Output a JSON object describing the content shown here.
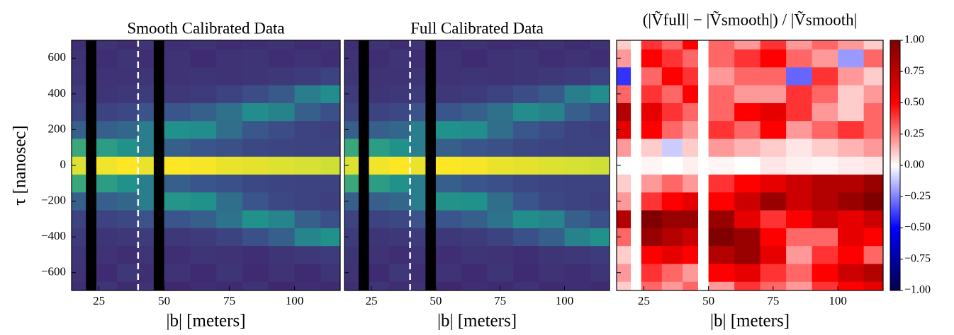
{
  "chart_data": [
    {
      "type": "heatmap",
      "title": "Smooth Calibrated Data",
      "xlabel": "|b| [meters]",
      "ylabel": "τ [nanosec]",
      "xlim": [
        14.5,
        117.5
      ],
      "ylim": [
        -700,
        700
      ],
      "xticks": [
        25,
        50,
        75,
        100
      ],
      "yticks": [
        {
          "value": -600,
          "label": "−600"
        },
        {
          "value": -400,
          "label": "−400"
        },
        {
          "value": -200,
          "label": "−200"
        },
        0,
        200,
        400,
        600
      ],
      "xbins": [
        14.5,
        20,
        24,
        32,
        40,
        46,
        50,
        60,
        70,
        80,
        90,
        100,
        110,
        117.5
      ],
      "ybins": [
        -700,
        -650,
        -550,
        -450,
        -350,
        -250,
        -150,
        -50,
        50,
        150,
        250,
        350,
        450,
        550,
        650,
        700
      ],
      "colormap": "viridis",
      "clim": [
        0,
        1
      ],
      "null_color": "#000000",
      "vline": 40,
      "z": [
        [
          0.14,
          null,
          0.16,
          0.13,
          0.15,
          null,
          0.12,
          0.14,
          0.13,
          0.15,
          0.12,
          0.14,
          0.13
        ],
        [
          0.15,
          null,
          0.13,
          0.17,
          0.14,
          null,
          0.15,
          0.13,
          0.16,
          0.13,
          0.15,
          0.13,
          0.16
        ],
        [
          0.16,
          null,
          0.15,
          0.14,
          0.16,
          null,
          0.14,
          0.16,
          0.15,
          0.14,
          0.16,
          0.17,
          0.18
        ],
        [
          0.18,
          null,
          0.16,
          0.17,
          0.18,
          null,
          0.17,
          0.18,
          0.2,
          0.24,
          0.3,
          0.45,
          0.5
        ],
        [
          0.2,
          null,
          0.2,
          0.22,
          0.25,
          null,
          0.26,
          0.3,
          0.38,
          0.5,
          0.45,
          0.3,
          0.24
        ],
        [
          0.3,
          null,
          0.3,
          0.33,
          0.42,
          null,
          0.52,
          0.5,
          0.36,
          0.26,
          0.22,
          0.2,
          0.19
        ],
        [
          0.6,
          null,
          0.55,
          0.5,
          0.42,
          null,
          0.3,
          0.26,
          0.24,
          0.22,
          0.21,
          0.2,
          0.2
        ],
        [
          0.95,
          null,
          0.98,
          1.0,
          0.97,
          null,
          1.0,
          0.99,
          0.97,
          0.96,
          0.95,
          0.94,
          0.93
        ],
        [
          0.6,
          null,
          0.55,
          0.5,
          0.42,
          null,
          0.3,
          0.26,
          0.24,
          0.22,
          0.21,
          0.2,
          0.2
        ],
        [
          0.3,
          null,
          0.3,
          0.33,
          0.42,
          null,
          0.5,
          0.48,
          0.36,
          0.27,
          0.23,
          0.2,
          0.19
        ],
        [
          0.2,
          null,
          0.2,
          0.22,
          0.25,
          null,
          0.26,
          0.3,
          0.37,
          0.48,
          0.44,
          0.3,
          0.24
        ],
        [
          0.18,
          null,
          0.16,
          0.17,
          0.18,
          null,
          0.17,
          0.18,
          0.2,
          0.23,
          0.28,
          0.42,
          0.48
        ],
        [
          0.16,
          null,
          0.15,
          0.15,
          0.16,
          null,
          0.15,
          0.16,
          0.15,
          0.16,
          0.17,
          0.18,
          0.2
        ],
        [
          0.15,
          null,
          0.14,
          0.16,
          0.14,
          null,
          0.15,
          0.13,
          0.15,
          0.16,
          0.14,
          0.15,
          0.14
        ],
        [
          0.14,
          null,
          0.15,
          0.13,
          0.16,
          null,
          0.14,
          0.15,
          0.13,
          0.14,
          0.15,
          0.13,
          0.15
        ]
      ]
    },
    {
      "type": "heatmap",
      "title": "Full Calibrated Data",
      "xlabel": "|b| [meters]",
      "xlim": [
        14.5,
        117.5
      ],
      "ylim": [
        -700,
        700
      ],
      "xticks": [
        25,
        50,
        75,
        100
      ],
      "yticks": [
        -600,
        -400,
        -200,
        0,
        200,
        400,
        600
      ],
      "xbins": [
        14.5,
        20,
        24,
        32,
        40,
        46,
        50,
        60,
        70,
        80,
        90,
        100,
        110,
        117.5
      ],
      "ybins": [
        -700,
        -650,
        -550,
        -450,
        -350,
        -250,
        -150,
        -50,
        50,
        150,
        250,
        350,
        450,
        550,
        650,
        700
      ],
      "colormap": "viridis",
      "clim": [
        0,
        1
      ],
      "null_color": "#000000",
      "vline": 40,
      "z": [
        [
          0.14,
          null,
          0.16,
          0.14,
          0.15,
          null,
          0.12,
          0.14,
          0.13,
          0.15,
          0.13,
          0.14,
          0.13
        ],
        [
          0.15,
          null,
          0.13,
          0.17,
          0.14,
          null,
          0.15,
          0.13,
          0.16,
          0.13,
          0.15,
          0.14,
          0.16
        ],
        [
          0.16,
          null,
          0.15,
          0.14,
          0.16,
          null,
          0.14,
          0.16,
          0.15,
          0.14,
          0.16,
          0.17,
          0.18
        ],
        [
          0.18,
          null,
          0.16,
          0.17,
          0.18,
          null,
          0.17,
          0.18,
          0.2,
          0.24,
          0.3,
          0.44,
          0.5
        ],
        [
          0.2,
          null,
          0.2,
          0.22,
          0.25,
          null,
          0.26,
          0.3,
          0.38,
          0.49,
          0.45,
          0.3,
          0.24
        ],
        [
          0.3,
          null,
          0.3,
          0.33,
          0.42,
          null,
          0.51,
          0.5,
          0.36,
          0.26,
          0.22,
          0.2,
          0.19
        ],
        [
          0.6,
          null,
          0.55,
          0.5,
          0.42,
          null,
          0.3,
          0.26,
          0.24,
          0.22,
          0.21,
          0.2,
          0.2
        ],
        [
          0.95,
          null,
          0.98,
          1.0,
          0.97,
          null,
          1.0,
          0.99,
          0.97,
          0.96,
          0.95,
          0.94,
          0.93
        ],
        [
          0.6,
          null,
          0.55,
          0.5,
          0.42,
          null,
          0.3,
          0.26,
          0.24,
          0.22,
          0.21,
          0.2,
          0.2
        ],
        [
          0.3,
          null,
          0.3,
          0.33,
          0.42,
          null,
          0.5,
          0.48,
          0.36,
          0.27,
          0.23,
          0.2,
          0.19
        ],
        [
          0.2,
          null,
          0.2,
          0.22,
          0.25,
          null,
          0.26,
          0.3,
          0.37,
          0.48,
          0.44,
          0.3,
          0.24
        ],
        [
          0.18,
          null,
          0.16,
          0.17,
          0.18,
          null,
          0.17,
          0.18,
          0.2,
          0.23,
          0.28,
          0.42,
          0.48
        ],
        [
          0.16,
          null,
          0.15,
          0.15,
          0.16,
          null,
          0.15,
          0.16,
          0.15,
          0.16,
          0.17,
          0.18,
          0.2
        ],
        [
          0.15,
          null,
          0.14,
          0.16,
          0.14,
          null,
          0.15,
          0.13,
          0.15,
          0.16,
          0.14,
          0.15,
          0.14
        ],
        [
          0.14,
          null,
          0.15,
          0.13,
          0.16,
          null,
          0.14,
          0.15,
          0.13,
          0.14,
          0.15,
          0.13,
          0.15
        ]
      ]
    },
    {
      "type": "heatmap",
      "title": "(|Ṽfull| − |Ṽsmooth|) / |Ṽsmooth|",
      "xlabel": "|b| [meters]",
      "xlim": [
        14.5,
        117.5
      ],
      "ylim": [
        -700,
        700
      ],
      "xticks": [
        25,
        50,
        75,
        100
      ],
      "yticks": [
        -600,
        -400,
        -200,
        0,
        200,
        400,
        600
      ],
      "xbins": [
        14.5,
        20,
        24,
        32,
        40,
        46,
        50,
        60,
        70,
        80,
        90,
        100,
        110,
        117.5
      ],
      "ybins": [
        -700,
        -650,
        -550,
        -450,
        -350,
        -250,
        -150,
        -50,
        50,
        150,
        250,
        350,
        450,
        550,
        650,
        700
      ],
      "colormap": "seismic",
      "clim": [
        -1,
        1
      ],
      "null_color": "#ffffff",
      "colorbar_ticks": [
        {
          "value": -1,
          "label": "−1.00"
        },
        {
          "value": -0.75,
          "label": "−0.75"
        },
        {
          "value": -0.5,
          "label": "−0.50"
        },
        {
          "value": -0.25,
          "label": "−0.25"
        },
        {
          "value": 0,
          "label": "0.00"
        },
        {
          "value": 0.25,
          "label": "0.25"
        },
        {
          "value": 0.5,
          "label": "0.50"
        },
        {
          "value": 0.75,
          "label": "0.75"
        },
        {
          "value": 1,
          "label": "1.00"
        }
      ],
      "z": [
        [
          0.1,
          null,
          0.3,
          0.2,
          0.3,
          null,
          0.2,
          0.4,
          0.3,
          0.2,
          0.4,
          0.5,
          0.6
        ],
        [
          0.2,
          null,
          0.4,
          0.3,
          0.2,
          null,
          0.5,
          0.6,
          0.4,
          0.3,
          0.5,
          0.7,
          0.8
        ],
        [
          0.1,
          null,
          0.5,
          0.6,
          0.5,
          null,
          0.8,
          0.9,
          0.6,
          0.2,
          0.4,
          0.5,
          0.3
        ],
        [
          0.3,
          null,
          0.9,
          0.8,
          0.7,
          null,
          1.0,
          0.9,
          0.5,
          0.3,
          0.3,
          0.6,
          0.5
        ],
        [
          0.8,
          null,
          1.0,
          0.9,
          0.9,
          null,
          0.9,
          0.6,
          0.4,
          0.5,
          0.7,
          0.6,
          0.7
        ],
        [
          0.2,
          null,
          0.4,
          0.5,
          0.6,
          null,
          0.5,
          0.7,
          0.9,
          0.7,
          0.8,
          0.9,
          1.0
        ],
        [
          0.1,
          null,
          0.2,
          0.3,
          0.2,
          null,
          0.4,
          0.5,
          0.6,
          0.7,
          0.8,
          0.8,
          0.9
        ],
        [
          0.0,
          null,
          0.02,
          0.0,
          0.03,
          null,
          0.02,
          0.0,
          0.05,
          0.03,
          0.02,
          0.04,
          0.05
        ],
        [
          0.2,
          null,
          0.1,
          -0.1,
          0.1,
          null,
          0.2,
          0.15,
          0.1,
          0.05,
          0.1,
          0.15,
          0.2
        ],
        [
          0.6,
          null,
          0.5,
          0.3,
          0.2,
          null,
          0.4,
          0.3,
          0.5,
          0.2,
          0.3,
          0.4,
          0.3
        ],
        [
          0.8,
          null,
          0.6,
          0.4,
          0.3,
          null,
          0.3,
          0.5,
          0.6,
          0.4,
          0.2,
          0.1,
          0.3
        ],
        [
          0.3,
          null,
          0.4,
          0.3,
          0.5,
          null,
          0.3,
          0.2,
          0.2,
          0.4,
          0.3,
          0.1,
          0.2
        ],
        [
          -0.4,
          null,
          0.3,
          0.5,
          0.4,
          null,
          0.2,
          0.3,
          0.3,
          -0.3,
          0.4,
          0.2,
          0.1
        ],
        [
          0.2,
          null,
          0.5,
          0.4,
          0.3,
          null,
          0.3,
          0.4,
          0.5,
          0.3,
          0.2,
          -0.2,
          0.3
        ],
        [
          0.1,
          null,
          0.4,
          0.3,
          0.5,
          null,
          0.3,
          0.2,
          0.4,
          0.2,
          0.3,
          0.2,
          0.1
        ]
      ]
    }
  ]
}
